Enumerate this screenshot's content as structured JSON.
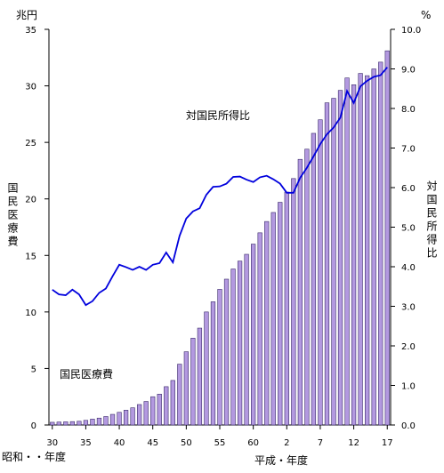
{
  "chart_data": {
    "type": "bar",
    "title": "",
    "left_axis": {
      "unit": "兆円",
      "label": "国民医療費",
      "ylim": [
        0,
        35
      ],
      "ticks": [
        "0",
        "5",
        "10",
        "15",
        "20",
        "25",
        "30",
        "35"
      ]
    },
    "right_axis": {
      "unit": "%",
      "label": "対国民所得比",
      "ylim": [
        0.0,
        10.0
      ],
      "ticks": [
        "0.0",
        "1.0",
        "2.0",
        "3.0",
        "4.0",
        "5.0",
        "6.0",
        "7.0",
        "8.0",
        "9.0",
        "10.0"
      ]
    },
    "x_axis": {
      "label_showa": "昭和・・年度",
      "label_heisei": "平成・年度",
      "tick_labels": [
        "30",
        "35",
        "40",
        "45",
        "50",
        "55",
        "60",
        "2",
        "7",
        "12",
        "17"
      ],
      "tick_index": [
        0,
        5,
        10,
        15,
        20,
        25,
        30,
        35,
        40,
        45,
        50
      ]
    },
    "categories": [
      "S30",
      "S31",
      "S32",
      "S33",
      "S34",
      "S35",
      "S36",
      "S37",
      "S38",
      "S39",
      "S40",
      "S41",
      "S42",
      "S43",
      "S44",
      "S45",
      "S46",
      "S47",
      "S48",
      "S49",
      "S50",
      "S51",
      "S52",
      "S53",
      "S54",
      "S55",
      "S56",
      "S57",
      "S58",
      "S59",
      "S60",
      "S61",
      "S62",
      "S63",
      "H1",
      "H2",
      "H3",
      "H4",
      "H5",
      "H6",
      "H7",
      "H8",
      "H9",
      "H10",
      "H11",
      "H12",
      "H13",
      "H14",
      "H15",
      "H16",
      "H17"
    ],
    "series": [
      {
        "name": "国民医療費",
        "type": "bar",
        "axis": "left",
        "color": "#b399e0",
        "values": [
          0.24,
          0.26,
          0.28,
          0.3,
          0.33,
          0.41,
          0.52,
          0.61,
          0.75,
          0.94,
          1.12,
          1.31,
          1.52,
          1.81,
          2.08,
          2.5,
          2.73,
          3.39,
          3.94,
          5.38,
          6.48,
          7.68,
          8.57,
          10.0,
          10.9,
          12.0,
          12.9,
          13.8,
          14.5,
          15.1,
          16.0,
          17.0,
          18.0,
          18.8,
          19.7,
          20.6,
          21.8,
          23.5,
          24.4,
          25.8,
          27.0,
          28.5,
          28.9,
          29.6,
          30.7,
          30.1,
          31.1,
          30.9,
          31.5,
          32.1,
          33.1
        ]
      },
      {
        "name": "対国民所得比",
        "type": "line",
        "axis": "right",
        "color": "#0000dd",
        "values": [
          3.42,
          3.3,
          3.28,
          3.42,
          3.3,
          3.03,
          3.13,
          3.34,
          3.45,
          3.76,
          4.05,
          3.99,
          3.92,
          4.0,
          3.92,
          4.05,
          4.09,
          4.36,
          4.11,
          4.78,
          5.22,
          5.4,
          5.48,
          5.82,
          6.02,
          6.03,
          6.1,
          6.27,
          6.28,
          6.2,
          6.14,
          6.26,
          6.3,
          6.21,
          6.1,
          5.87,
          5.87,
          6.25,
          6.5,
          6.79,
          7.1,
          7.35,
          7.52,
          7.77,
          8.44,
          8.14,
          8.56,
          8.7,
          8.8,
          8.84,
          9.04
        ]
      }
    ],
    "annotations": {
      "line_label": "対国民所得比",
      "bar_label": "国民医療費"
    },
    "grid": false,
    "legend": "none"
  }
}
